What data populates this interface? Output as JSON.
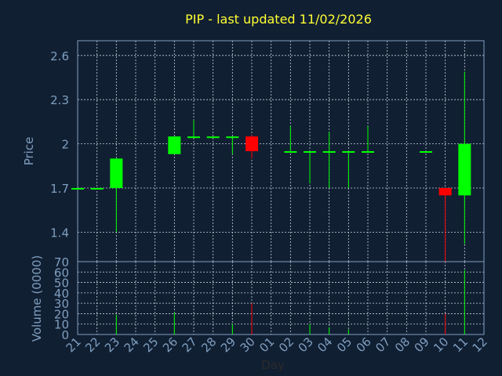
{
  "colors": {
    "background": "#111f33",
    "frame": "#7f9fbf",
    "grid": "#c9d3de",
    "title": "#ffff33",
    "axis_text": "#7f9fbf",
    "up": "#00ff00",
    "down": "#ff0000"
  },
  "chart_data": {
    "type": "candlestick",
    "title": "PIP - last updated 11/02/2026",
    "xlabel": "Day",
    "ylabel": "Price",
    "volume_label": "Volume (0000)",
    "x_tick_labels": [
      "21",
      "22",
      "23",
      "24",
      "25",
      "26",
      "27",
      "28",
      "29",
      "30",
      "01",
      "02",
      "03",
      "04",
      "05",
      "06",
      "07",
      "08",
      "09",
      "10",
      "11",
      "12"
    ],
    "price_ylim": [
      1.2,
      2.7
    ],
    "price_ticks": [
      1.4,
      1.7,
      2,
      2.3,
      2.6
    ],
    "price_tick_labels": [
      "1.4",
      "1.7",
      "2",
      "2.3",
      "2.6"
    ],
    "volume_ylim": [
      0,
      70
    ],
    "volume_ticks": [
      0,
      10,
      20,
      30,
      40,
      50,
      60,
      70
    ],
    "volume_tick_labels": [
      "0",
      "10",
      "20",
      "30",
      "40",
      "50",
      "60",
      "70"
    ],
    "grid": true,
    "candles": [
      {
        "day": "21",
        "open": 1.7,
        "high": 1.7,
        "low": 1.7,
        "close": 1.7,
        "volume": 0
      },
      {
        "day": "22",
        "open": 1.7,
        "high": 1.7,
        "low": 1.7,
        "close": 1.7,
        "volume": 0
      },
      {
        "day": "23",
        "open": 1.7,
        "high": 1.9,
        "low": 1.4,
        "close": 1.9,
        "volume": 19
      },
      {
        "day": "26",
        "open": 1.93,
        "high": 2.05,
        "low": 1.93,
        "close": 2.05,
        "volume": 21
      },
      {
        "day": "27",
        "open": 2.05,
        "high": 2.16,
        "low": 2.05,
        "close": 2.05,
        "volume": 0
      },
      {
        "day": "28",
        "open": 2.05,
        "high": 2.05,
        "low": 2.05,
        "close": 2.05,
        "volume": 0
      },
      {
        "day": "29",
        "open": 2.05,
        "high": 2.05,
        "low": 1.93,
        "close": 2.05,
        "volume": 10
      },
      {
        "day": "30",
        "open": 2.05,
        "high": 2.06,
        "low": 1.9,
        "close": 1.95,
        "volume": 30
      },
      {
        "day": "02",
        "open": 1.95,
        "high": 2.12,
        "low": 1.95,
        "close": 1.95,
        "volume": 0
      },
      {
        "day": "03",
        "open": 1.95,
        "high": 1.95,
        "low": 1.73,
        "close": 1.95,
        "volume": 10
      },
      {
        "day": "04",
        "open": 1.95,
        "high": 2.08,
        "low": 1.7,
        "close": 1.95,
        "volume": 7
      },
      {
        "day": "05",
        "open": 1.95,
        "high": 1.95,
        "low": 1.7,
        "close": 1.95,
        "volume": 5
      },
      {
        "day": "06",
        "open": 1.95,
        "high": 2.12,
        "low": 1.95,
        "close": 1.95,
        "volume": 0
      },
      {
        "day": "09",
        "open": 1.95,
        "high": 1.95,
        "low": 1.95,
        "close": 1.95,
        "volume": 0
      },
      {
        "day": "10",
        "open": 1.7,
        "high": 1.7,
        "low": 1.2,
        "close": 1.65,
        "volume": 20
      },
      {
        "day": "11",
        "open": 1.65,
        "high": 2.49,
        "low": 1.32,
        "close": 2.0,
        "volume": 62
      }
    ]
  }
}
